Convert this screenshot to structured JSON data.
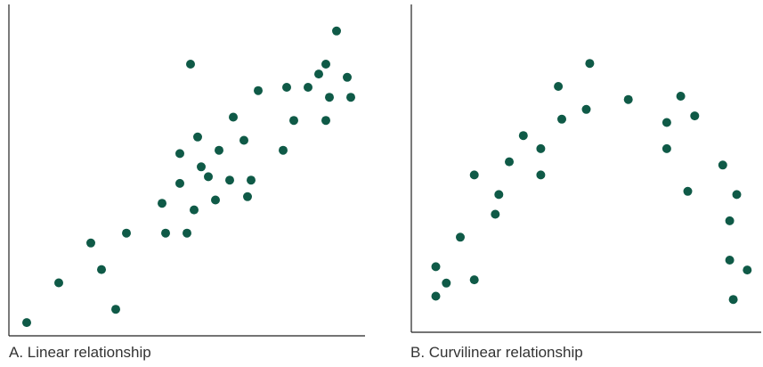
{
  "colors": {
    "point": "#0f5a47",
    "axis": "#222222"
  },
  "chart_data": [
    {
      "type": "scatter",
      "title": "",
      "caption": "A. Linear relationship",
      "xlabel": "",
      "ylabel": "",
      "xlim": [
        0,
        100
      ],
      "ylim": [
        0,
        100
      ],
      "grid": false,
      "points": [
        {
          "x": 5,
          "y": 4
        },
        {
          "x": 14,
          "y": 16
        },
        {
          "x": 23,
          "y": 28
        },
        {
          "x": 26,
          "y": 20
        },
        {
          "x": 30,
          "y": 8
        },
        {
          "x": 33,
          "y": 31
        },
        {
          "x": 43,
          "y": 40
        },
        {
          "x": 44,
          "y": 31
        },
        {
          "x": 48,
          "y": 46
        },
        {
          "x": 48,
          "y": 55
        },
        {
          "x": 50,
          "y": 31
        },
        {
          "x": 51,
          "y": 82
        },
        {
          "x": 52,
          "y": 38
        },
        {
          "x": 53,
          "y": 60
        },
        {
          "x": 54,
          "y": 51
        },
        {
          "x": 56,
          "y": 48
        },
        {
          "x": 58,
          "y": 41
        },
        {
          "x": 59,
          "y": 56
        },
        {
          "x": 62,
          "y": 47
        },
        {
          "x": 63,
          "y": 66
        },
        {
          "x": 66,
          "y": 59
        },
        {
          "x": 67,
          "y": 42
        },
        {
          "x": 68,
          "y": 47
        },
        {
          "x": 70,
          "y": 74
        },
        {
          "x": 77,
          "y": 56
        },
        {
          "x": 78,
          "y": 75
        },
        {
          "x": 80,
          "y": 65
        },
        {
          "x": 84,
          "y": 75
        },
        {
          "x": 87,
          "y": 79
        },
        {
          "x": 89,
          "y": 65
        },
        {
          "x": 89,
          "y": 82
        },
        {
          "x": 90,
          "y": 72
        },
        {
          "x": 92,
          "y": 92
        },
        {
          "x": 95,
          "y": 78
        },
        {
          "x": 96,
          "y": 72
        }
      ]
    },
    {
      "type": "scatter",
      "title": "",
      "caption": "B. Curvilinear relationship",
      "xlabel": "",
      "ylabel": "",
      "xlim": [
        0,
        100
      ],
      "ylim": [
        0,
        100
      ],
      "grid": false,
      "points": [
        {
          "x": 7,
          "y": 20
        },
        {
          "x": 7,
          "y": 11
        },
        {
          "x": 10,
          "y": 15
        },
        {
          "x": 14,
          "y": 29
        },
        {
          "x": 18,
          "y": 48
        },
        {
          "x": 18,
          "y": 16
        },
        {
          "x": 24,
          "y": 36
        },
        {
          "x": 25,
          "y": 42
        },
        {
          "x": 28,
          "y": 52
        },
        {
          "x": 32,
          "y": 60
        },
        {
          "x": 37,
          "y": 56
        },
        {
          "x": 37,
          "y": 48
        },
        {
          "x": 42,
          "y": 75
        },
        {
          "x": 43,
          "y": 65
        },
        {
          "x": 50,
          "y": 68
        },
        {
          "x": 51,
          "y": 82
        },
        {
          "x": 62,
          "y": 71
        },
        {
          "x": 73,
          "y": 64
        },
        {
          "x": 73,
          "y": 56
        },
        {
          "x": 77,
          "y": 72
        },
        {
          "x": 79,
          "y": 43
        },
        {
          "x": 81,
          "y": 66
        },
        {
          "x": 89,
          "y": 51
        },
        {
          "x": 91,
          "y": 22
        },
        {
          "x": 91,
          "y": 34
        },
        {
          "x": 92,
          "y": 10
        },
        {
          "x": 93,
          "y": 42
        },
        {
          "x": 96,
          "y": 19
        }
      ]
    }
  ]
}
